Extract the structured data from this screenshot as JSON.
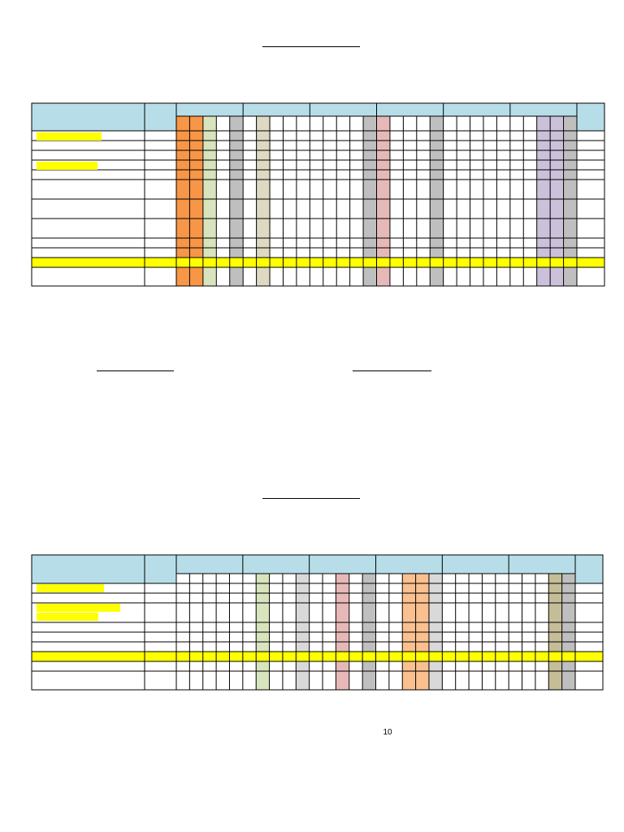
{
  "page_number": "10",
  "headings": {
    "top_title": "",
    "left_subtitle": "",
    "right_subtitle": "",
    "bottom_title": ""
  },
  "colors": {
    "header_blue": "#b7dde8",
    "highlight_yellow": "#ffff00",
    "orange": "#f79646",
    "light_green": "#d7e4bd",
    "gray": "#bfbfbf",
    "tan": "#ddd9c3",
    "pink": "#e6b9b8",
    "lavender": "#ccc1da",
    "light_orange": "#fac090",
    "light_gray": "#d9d9d9",
    "khaki": "#c4bd97"
  },
  "table_top": {
    "name_column_header": "",
    "second_column_header": "",
    "last_column_header": "",
    "group_headers": [
      "",
      "",
      "",
      "",
      "",
      ""
    ],
    "row_labels": [
      "",
      "",
      "",
      "",
      "",
      "",
      "",
      "",
      "",
      "",
      "",
      "",
      ""
    ],
    "highlighted_row_index": 10,
    "highlighted_label_rows": [
      0,
      3
    ]
  },
  "table_bottom": {
    "name_column_header": "",
    "second_column_header": "",
    "last_column_header": "",
    "group_headers": [
      "",
      "",
      "",
      "",
      "",
      ""
    ],
    "row_labels": [
      "",
      "",
      "",
      "",
      "",
      "",
      "",
      "",
      ""
    ],
    "highlighted_row_index": 6,
    "highlighted_label_rows": [
      0,
      1
    ]
  }
}
